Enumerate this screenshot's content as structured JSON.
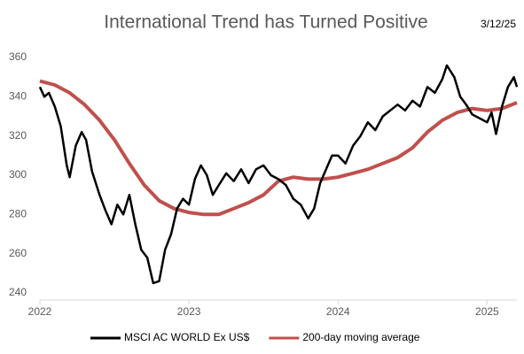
{
  "chart_data": {
    "type": "line",
    "title": "International Trend has Turned Positive",
    "date_label": "3/12/25",
    "xlim": [
      2022,
      2025.2
    ],
    "xticks": [
      2022,
      2023,
      2024,
      2025
    ],
    "ylim": [
      240,
      360
    ],
    "yticks": [
      240,
      260,
      280,
      300,
      320,
      340,
      360
    ],
    "grid": false,
    "legend": "bottom",
    "series": [
      {
        "name": "MSCI AC WORLD Ex US$",
        "color": "#000000",
        "x": [
          2022.0,
          2022.03,
          2022.06,
          2022.1,
          2022.14,
          2022.18,
          2022.2,
          2022.24,
          2022.28,
          2022.31,
          2022.35,
          2022.4,
          2022.44,
          2022.48,
          2022.52,
          2022.56,
          2022.6,
          2022.64,
          2022.68,
          2022.72,
          2022.76,
          2022.8,
          2022.84,
          2022.88,
          2022.92,
          2022.96,
          2023.0,
          2023.04,
          2023.08,
          2023.12,
          2023.16,
          2023.2,
          2023.25,
          2023.3,
          2023.35,
          2023.4,
          2023.45,
          2023.5,
          2023.55,
          2023.6,
          2023.65,
          2023.7,
          2023.75,
          2023.8,
          2023.84,
          2023.88,
          2023.92,
          2023.96,
          2024.0,
          2024.05,
          2024.1,
          2024.15,
          2024.2,
          2024.25,
          2024.3,
          2024.35,
          2024.4,
          2024.45,
          2024.5,
          2024.55,
          2024.6,
          2024.65,
          2024.7,
          2024.73,
          2024.78,
          2024.82,
          2024.86,
          2024.9,
          2024.95,
          2025.0,
          2025.03,
          2025.06,
          2025.1,
          2025.14,
          2025.18,
          2025.2
        ],
        "values": [
          345,
          340,
          342,
          335,
          325,
          305,
          299,
          315,
          322,
          318,
          302,
          290,
          282,
          275,
          285,
          280,
          290,
          275,
          262,
          258,
          245,
          246,
          262,
          270,
          283,
          288,
          285,
          298,
          305,
          300,
          290,
          295,
          301,
          297,
          303,
          296,
          303,
          305,
          300,
          298,
          295,
          288,
          285,
          278,
          283,
          296,
          303,
          310,
          310,
          306,
          315,
          320,
          327,
          323,
          330,
          333,
          336,
          333,
          338,
          335,
          345,
          342,
          349,
          356,
          350,
          340,
          336,
          331,
          329,
          327,
          332,
          321,
          335,
          345,
          350,
          345
        ]
      },
      {
        "name": "200-day moving average",
        "color": "#c0504d",
        "x": [
          2022.0,
          2022.1,
          2022.2,
          2022.3,
          2022.4,
          2022.5,
          2022.6,
          2022.7,
          2022.8,
          2022.9,
          2023.0,
          2023.1,
          2023.2,
          2023.3,
          2023.4,
          2023.5,
          2023.6,
          2023.7,
          2023.8,
          2023.9,
          2024.0,
          2024.1,
          2024.2,
          2024.3,
          2024.4,
          2024.5,
          2024.6,
          2024.7,
          2024.8,
          2024.9,
          2025.0,
          2025.1,
          2025.2
        ],
        "values": [
          348,
          346,
          342,
          336,
          328,
          318,
          306,
          295,
          287,
          283,
          281,
          280,
          280,
          283,
          286,
          290,
          297,
          299,
          298,
          298,
          299,
          301,
          303,
          306,
          309,
          314,
          322,
          328,
          332,
          334,
          333,
          334,
          337
        ]
      }
    ]
  }
}
